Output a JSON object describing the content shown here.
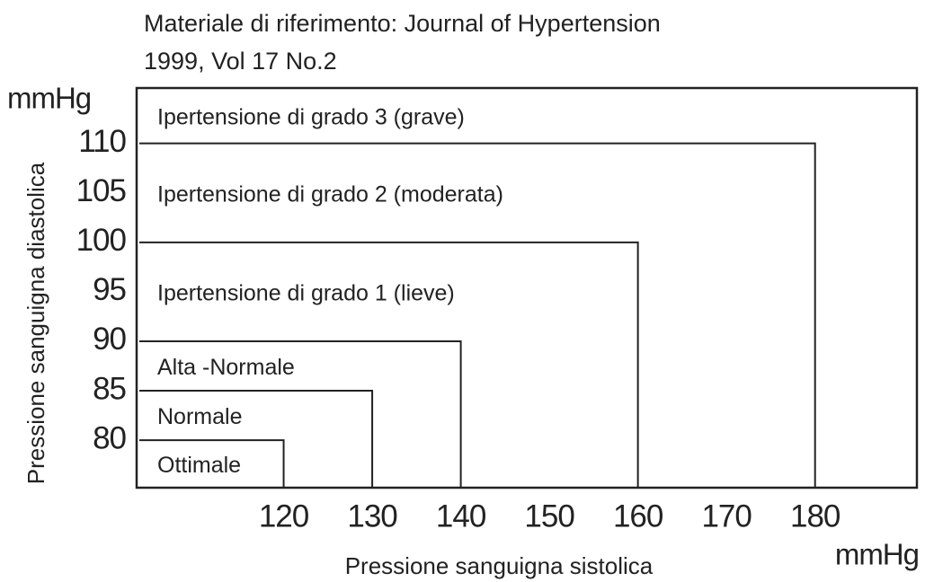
{
  "chart_data": {
    "type": "nested-regions",
    "title": [
      "Materiale di riferimento: Journal of Hypertension",
      "1999, Vol 17 No.2"
    ],
    "x_label": "Pressione sanguigna sistolica",
    "y_label": "Pressione sanguigna diastolica",
    "x_unit": "mmHg",
    "y_unit": "mmHg",
    "xlim": [
      103.4,
      191.5
    ],
    "ylim": [
      75.2,
      115.6
    ],
    "xticks": [
      120,
      130,
      140,
      150,
      160,
      170,
      180
    ],
    "yticks": [
      80,
      85,
      90,
      95,
      100,
      105,
      110
    ],
    "regions": [
      {
        "name": "Ottimale",
        "x": 120,
        "y": 80
      },
      {
        "name": "Normale",
        "x": 130,
        "y": 85
      },
      {
        "name": "Alta -Normale",
        "x": 140,
        "y": 90
      },
      {
        "name": "Ipertensione di grado 1 (lieve)",
        "x": 160,
        "y": 100
      },
      {
        "name": "Ipertensione di grado 2 (moderata)",
        "x": 180,
        "y": 110
      },
      {
        "name": "Ipertensione di grado 3 (grave)"
      }
    ]
  }
}
